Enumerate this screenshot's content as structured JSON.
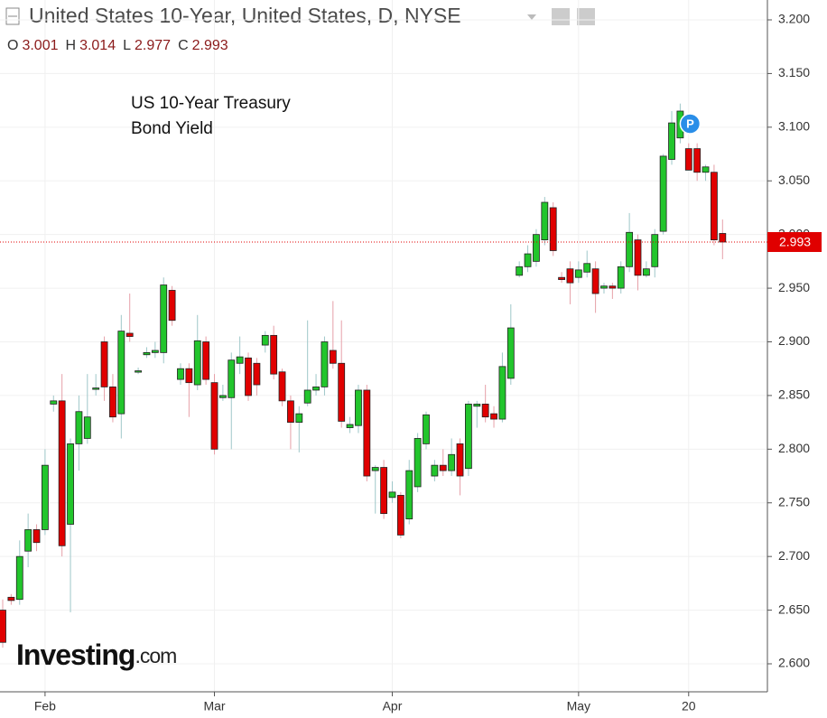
{
  "chart_data": {
    "type": "candlestick",
    "title": "United States 10-Year, United States, D, NYSE",
    "ohlc_labels": [
      "O",
      "H",
      "L",
      "C"
    ],
    "annotation": [
      "US 10-Year Treasury",
      "Bond Yield"
    ],
    "marker": "P",
    "logo": [
      "Investing",
      ".com"
    ],
    "up_color": "#22c52c",
    "down_color": "#e00000",
    "categories": [
      null,
      null,
      null,
      null,
      null,
      "Feb",
      null,
      null,
      null,
      null,
      null,
      null,
      null,
      null,
      null,
      null,
      null,
      null,
      null,
      null,
      null,
      null,
      null,
      null,
      null,
      "Mar",
      null,
      null,
      null,
      null,
      null,
      null,
      null,
      null,
      null,
      null,
      null,
      null,
      null,
      null,
      null,
      null,
      null,
      null,
      null,
      null,
      "Apr",
      null,
      null,
      null,
      null,
      null,
      null,
      null,
      null,
      null,
      null,
      null,
      null,
      null,
      null,
      null,
      null,
      null,
      null,
      null,
      null,
      null,
      "May",
      null,
      null,
      null,
      null,
      null,
      null,
      null,
      null,
      null,
      null,
      null,
      null,
      "20",
      null,
      null,
      null,
      null
    ],
    "open": [
      2.65,
      2.662,
      2.66,
      2.705,
      2.725,
      2.725,
      2.842,
      2.845,
      2.73,
      2.805,
      2.81,
      2.856,
      2.9,
      2.858,
      2.833,
      2.908,
      2.873,
      2.888,
      2.89,
      2.89,
      2.948,
      2.865,
      2.875,
      2.86,
      2.9,
      2.862,
      2.848,
      2.848,
      2.88,
      2.885,
      2.88,
      2.897,
      2.906,
      2.872,
      2.845,
      2.825,
      2.843,
      2.855,
      2.858,
      2.892,
      2.88,
      2.82,
      2.822,
      2.855,
      2.78,
      2.783,
      2.755,
      2.757,
      2.735,
      2.765,
      2.805,
      2.775,
      2.785,
      2.78,
      2.805,
      2.782,
      2.84,
      2.842,
      2.833,
      2.828,
      2.866,
      2.962,
      2.97,
      2.975,
      2.995,
      3.025,
      2.96,
      2.968,
      2.96,
      2.965,
      2.968,
      2.95,
      2.952,
      2.95,
      2.97,
      2.995,
      2.962,
      2.97,
      3.003,
      3.07,
      3.09,
      3.08,
      3.08,
      3.058,
      3.058,
      3.001
    ],
    "high": [
      2.66,
      2.665,
      2.715,
      2.74,
      2.73,
      2.8,
      2.85,
      2.87,
      2.81,
      2.85,
      2.87,
      2.87,
      2.905,
      2.87,
      2.925,
      2.945,
      2.876,
      2.895,
      2.9,
      2.96,
      2.952,
      2.88,
      2.88,
      2.925,
      2.905,
      2.87,
      2.86,
      2.89,
      2.905,
      2.89,
      2.885,
      2.91,
      2.915,
      2.875,
      2.85,
      2.84,
      2.92,
      2.87,
      2.905,
      2.938,
      2.92,
      2.83,
      2.86,
      2.86,
      2.785,
      2.79,
      2.77,
      2.76,
      2.79,
      2.815,
      2.835,
      2.79,
      2.8,
      2.81,
      2.81,
      2.845,
      2.845,
      2.86,
      2.84,
      2.89,
      2.935,
      2.975,
      2.99,
      3.005,
      3.035,
      3.03,
      2.965,
      2.975,
      2.975,
      2.985,
      2.975,
      2.955,
      2.955,
      2.975,
      3.02,
      3.0,
      2.975,
      3.005,
      3.075,
      3.115,
      3.122,
      3.085,
      3.085,
      3.065,
      3.065,
      3.014
    ],
    "low": [
      2.615,
      2.655,
      2.655,
      2.69,
      2.705,
      2.72,
      2.835,
      2.7,
      2.648,
      2.78,
      2.805,
      2.85,
      2.845,
      2.825,
      2.81,
      2.9,
      2.87,
      2.885,
      2.885,
      2.88,
      2.915,
      2.86,
      2.83,
      2.855,
      2.86,
      2.795,
      2.845,
      2.8,
      2.87,
      2.845,
      2.85,
      2.89,
      2.865,
      2.84,
      2.8,
      2.797,
      2.84,
      2.85,
      2.85,
      2.875,
      2.82,
      2.815,
      2.815,
      2.77,
      2.74,
      2.735,
      2.75,
      2.717,
      2.73,
      2.76,
      2.8,
      2.77,
      2.775,
      2.775,
      2.757,
      2.775,
      2.82,
      2.825,
      2.82,
      2.825,
      2.86,
      2.96,
      2.965,
      2.97,
      2.99,
      2.98,
      2.955,
      2.935,
      2.955,
      2.96,
      2.927,
      2.945,
      2.94,
      2.945,
      2.965,
      2.948,
      2.96,
      2.96,
      3.0,
      3.065,
      3.085,
      3.06,
      3.05,
      3.05,
      2.99,
      2.977
    ],
    "close": [
      2.62,
      2.659,
      2.7,
      2.725,
      2.713,
      2.785,
      2.845,
      2.71,
      2.805,
      2.835,
      2.83,
      2.857,
      2.858,
      2.83,
      2.91,
      2.905,
      2.873,
      2.89,
      2.892,
      2.953,
      2.92,
      2.875,
      2.862,
      2.901,
      2.865,
      2.8,
      2.85,
      2.883,
      2.886,
      2.85,
      2.86,
      2.906,
      2.87,
      2.845,
      2.825,
      2.833,
      2.855,
      2.858,
      2.9,
      2.88,
      2.826,
      2.823,
      2.855,
      2.775,
      2.783,
      2.74,
      2.76,
      2.72,
      2.78,
      2.81,
      2.832,
      2.785,
      2.78,
      2.795,
      2.775,
      2.842,
      2.842,
      2.83,
      2.828,
      2.877,
      2.913,
      2.97,
      2.982,
      3.0,
      3.03,
      2.985,
      2.958,
      2.955,
      2.967,
      2.973,
      2.945,
      2.952,
      2.95,
      2.97,
      3.002,
      2.962,
      2.968,
      3.0,
      3.073,
      3.104,
      3.115,
      3.06,
      3.058,
      3.063,
      2.995,
      2.993
    ],
    "ylim": [
      2.6,
      3.2
    ],
    "yticks": [
      {
        "value": 2.6,
        "label": "2.600"
      },
      {
        "value": 2.65,
        "label": "2.650"
      },
      {
        "value": 2.7,
        "label": "2.700"
      },
      {
        "value": 2.75,
        "label": "2.750"
      },
      {
        "value": 2.8,
        "label": "2.800"
      },
      {
        "value": 2.85,
        "label": "2.850"
      },
      {
        "value": 2.9,
        "label": "2.900"
      },
      {
        "value": 2.95,
        "label": "2.950"
      },
      {
        "value": 3.0,
        "label": "3.000"
      },
      {
        "value": 3.05,
        "label": "3.050"
      },
      {
        "value": 3.1,
        "label": "3.100"
      },
      {
        "value": 3.15,
        "label": "3.150"
      },
      {
        "value": 3.2,
        "label": "3.200"
      }
    ],
    "grid": true
  }
}
